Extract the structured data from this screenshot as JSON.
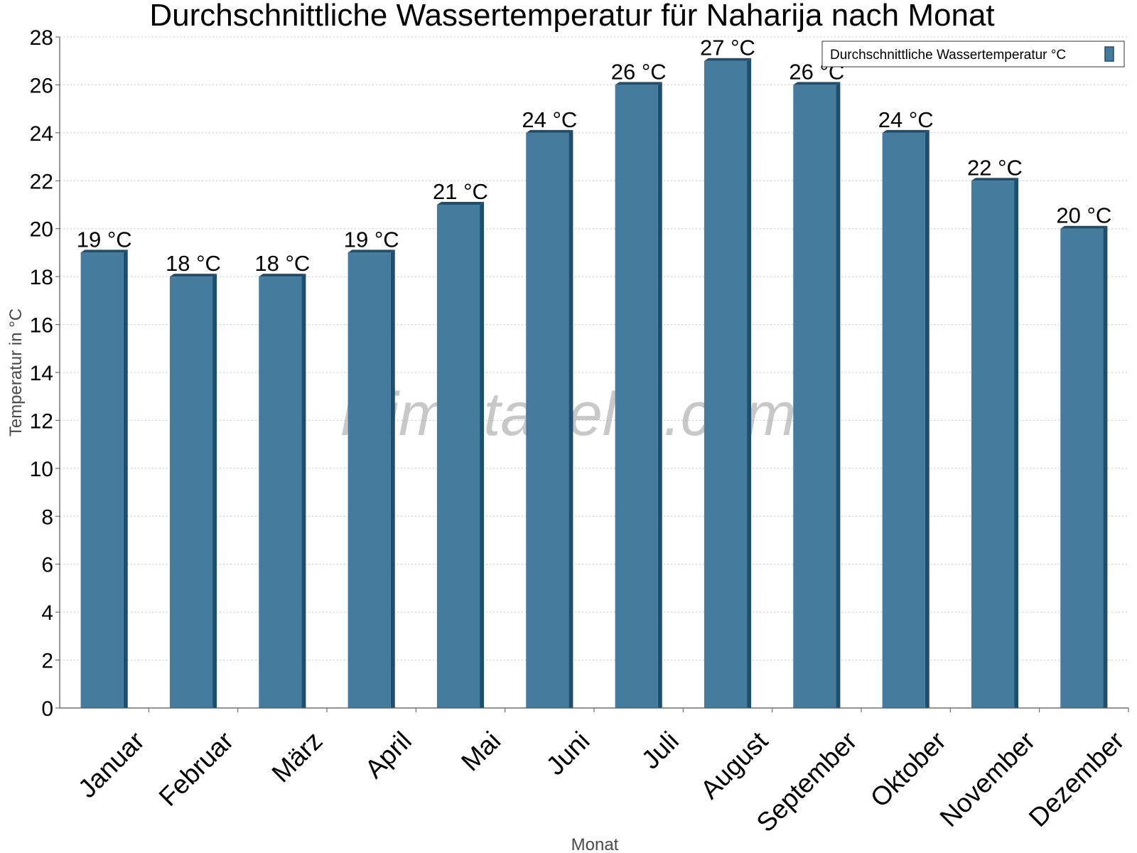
{
  "chart_data": {
    "type": "bar",
    "title": "Durchschnittliche Wassertemperatur für Naharija nach Monat",
    "xlabel": "Monat",
    "ylabel": "Temperatur in °C",
    "ylim": [
      0,
      28
    ],
    "yticks": [
      0,
      2,
      4,
      6,
      8,
      10,
      12,
      14,
      16,
      18,
      20,
      22,
      24,
      26,
      28
    ],
    "categories": [
      "Januar",
      "Februar",
      "März",
      "April",
      "Mai",
      "Juni",
      "Juli",
      "August",
      "September",
      "Oktober",
      "November",
      "Dezember"
    ],
    "series": [
      {
        "name": "Durchschnittliche Wassertemperatur °C",
        "values": [
          19,
          18,
          18,
          19,
          21,
          24,
          26,
          27,
          26,
          24,
          22,
          20
        ],
        "labels": [
          "19 °C",
          "18 °C",
          "18 °C",
          "19 °C",
          "21 °C",
          "24 °C",
          "26 °C",
          "27 °C",
          "26 °C",
          "24 °C",
          "22 °C",
          "20 °C"
        ],
        "color": "#457b9d",
        "side_color": "#1d4e6e"
      }
    ],
    "grid": true,
    "grid_style": "dotted",
    "legend_position": "top-right",
    "watermark": "klimatabelle.com"
  }
}
